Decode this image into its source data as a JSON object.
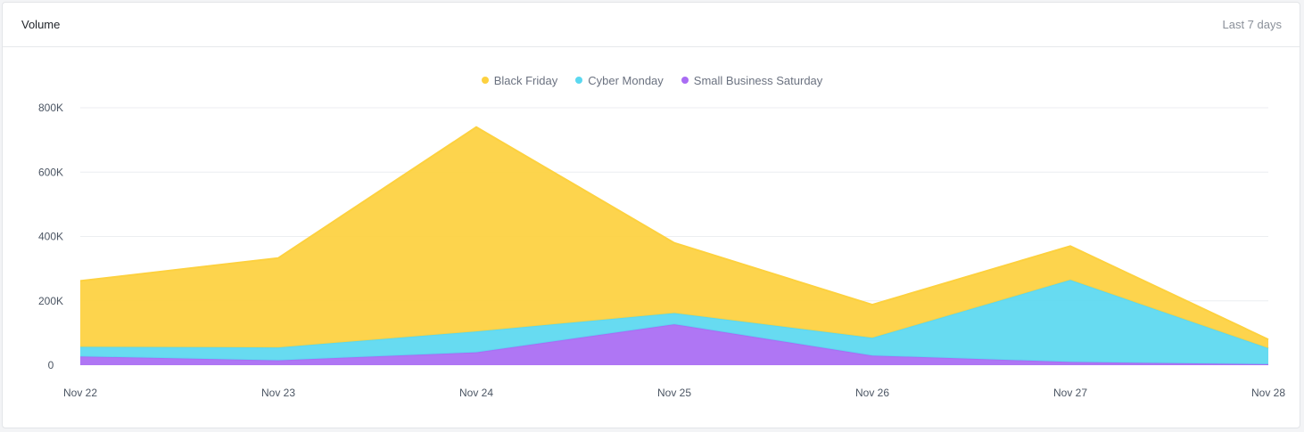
{
  "header": {
    "title": "Volume",
    "range_label": "Last 7 days"
  },
  "colors": {
    "Black Friday": "#fdd13f",
    "Cyber Monday": "#5bd8f0",
    "Small Business Saturday": "#a96cf3",
    "grid": "#eceef1"
  },
  "chart_data": {
    "type": "area",
    "stacked": true,
    "x": [
      "Nov 22",
      "Nov 23",
      "Nov 24",
      "Nov 25",
      "Nov 26",
      "Nov 27",
      "Nov 28"
    ],
    "ylim": [
      0,
      800000
    ],
    "yticks": [
      0,
      200000,
      400000,
      600000,
      800000
    ],
    "ytick_labels": [
      "0",
      "200K",
      "400K",
      "600K",
      "800K"
    ],
    "legend_position": "top-center",
    "grid": true,
    "series": [
      {
        "name": "Small Business Saturday",
        "values": [
          27000,
          15000,
          40000,
          127000,
          30000,
          10000,
          3000
        ]
      },
      {
        "name": "Cyber Monday",
        "values": [
          30000,
          40000,
          65000,
          35000,
          55000,
          255000,
          50000
        ]
      },
      {
        "name": "Black Friday",
        "values": [
          205000,
          278000,
          635000,
          218000,
          103000,
          105000,
          27000
        ]
      }
    ],
    "legend_order": [
      "Black Friday",
      "Cyber Monday",
      "Small Business Saturday"
    ]
  }
}
